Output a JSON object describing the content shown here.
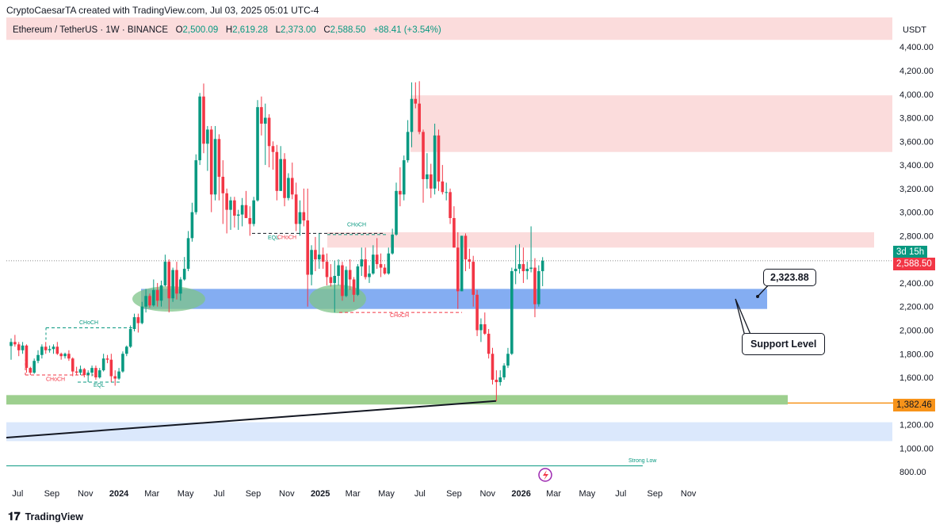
{
  "caption": "CryptoCaesarTA created with TradingView.com, Jul 03, 2025 05:01 UTC-4",
  "legend": {
    "symbol": "Ethereum / TetherUS · 1W · BINANCE",
    "o_label": "O",
    "o_value": "2,500.09",
    "h_label": "H",
    "h_value": "2,619.28",
    "l_label": "L",
    "l_value": "2,373.00",
    "c_label": "C",
    "c_value": "2,588.50",
    "change": "+88.41 (+3.54%)"
  },
  "brand": "TradingView",
  "tags": {
    "timer": "3d 15h",
    "last_price": "2,588.50",
    "level_price": "1,382.46"
  },
  "annotations": {
    "callout_price": "2,323.88",
    "callout_support": "Support Level",
    "choch_1": "CHoCH",
    "choch_2": "CHoCH",
    "choch_3": "CHoCH",
    "choch_4": "CHoCH",
    "choch_5": "CHoCH",
    "eql_1": "EQL",
    "eql_2": "EQL",
    "strong_low": "Strong Low"
  },
  "colors": {
    "up": "#089981",
    "down": "#f23645",
    "supply_zone": "#fbdcdc",
    "demand_zone": "#6e9ff0",
    "base_zone": "#8cc77a",
    "lower_zone": "#dbe8fc",
    "level_line": "#f7931a"
  },
  "chart_data": {
    "type": "candlestick",
    "interval": "1W",
    "y_axis_title": "USDT",
    "y_ticks": [
      800,
      1000,
      1200,
      1600,
      1800,
      2000,
      2200,
      2400,
      2800,
      3000,
      3200,
      3400,
      3600,
      3800,
      4000,
      4200,
      4400
    ],
    "y_tick_labels": [
      "800.00",
      "1,000.00",
      "1,200.00",
      "1,600.00",
      "1,800.00",
      "2,000.00",
      "2,200.00",
      "2,400.00",
      "2,800.00",
      "3,000.00",
      "3,200.00",
      "3,400.00",
      "3,600.00",
      "3,800.00",
      "4,000.00",
      "4,200.00",
      "4,400.00"
    ],
    "ylim": [
      700,
      4650
    ],
    "x_tick_labels": [
      "Jul",
      "Sep",
      "Nov",
      "2024",
      "Mar",
      "May",
      "Jul",
      "Sep",
      "Nov",
      "2025",
      "Mar",
      "May",
      "Jul",
      "Sep",
      "Nov",
      "2026",
      "Mar",
      "May",
      "Jul",
      "Sep",
      "Nov"
    ],
    "x_tick_dates": [
      "2023-07-01",
      "2023-09-01",
      "2023-11-01",
      "2024-01-01",
      "2024-03-01",
      "2024-05-01",
      "2024-07-01",
      "2024-09-01",
      "2024-11-01",
      "2025-01-01",
      "2025-03-01",
      "2025-05-01",
      "2025-07-01",
      "2025-09-01",
      "2025-11-01",
      "2026-01-01",
      "2026-03-01",
      "2026-05-01",
      "2026-07-01",
      "2026-09-01",
      "2026-11-01"
    ],
    "candles_ohlc": [
      [
        1866,
        1930,
        1750,
        1900
      ],
      [
        1900,
        1960,
        1860,
        1880
      ],
      [
        1880,
        1900,
        1780,
        1830
      ],
      [
        1830,
        1900,
        1800,
        1870
      ],
      [
        1870,
        1880,
        1640,
        1680
      ],
      [
        1680,
        1690,
        1620,
        1640
      ],
      [
        1640,
        1760,
        1630,
        1740
      ],
      [
        1740,
        1830,
        1720,
        1790
      ],
      [
        1790,
        1880,
        1760,
        1860
      ],
      [
        1860,
        1900,
        1800,
        1830
      ],
      [
        1830,
        1870,
        1810,
        1840
      ],
      [
        1840,
        1880,
        1800,
        1860
      ],
      [
        1860,
        1900,
        1790,
        1800
      ],
      [
        1800,
        1810,
        1750,
        1780
      ],
      [
        1780,
        1810,
        1760,
        1800
      ],
      [
        1800,
        1830,
        1740,
        1760
      ],
      [
        1760,
        1770,
        1610,
        1650
      ],
      [
        1650,
        1690,
        1620,
        1640
      ],
      [
        1640,
        1700,
        1620,
        1670
      ],
      [
        1670,
        1680,
        1600,
        1620
      ],
      [
        1620,
        1660,
        1560,
        1640
      ],
      [
        1640,
        1700,
        1610,
        1680
      ],
      [
        1680,
        1700,
        1580,
        1600
      ],
      [
        1600,
        1680,
        1590,
        1660
      ],
      [
        1660,
        1800,
        1650,
        1760
      ],
      [
        1760,
        1790,
        1720,
        1750
      ],
      [
        1750,
        1800,
        1560,
        1610
      ],
      [
        1610,
        1660,
        1530,
        1590
      ],
      [
        1590,
        1680,
        1580,
        1650
      ],
      [
        1650,
        1820,
        1640,
        1800
      ],
      [
        1800,
        1870,
        1780,
        1860
      ],
      [
        1860,
        2040,
        1850,
        2010
      ],
      [
        2010,
        2140,
        1990,
        2110
      ],
      [
        2110,
        2140,
        1980,
        2060
      ],
      [
        2060,
        2240,
        2050,
        2200
      ],
      [
        2200,
        2350,
        2150,
        2290
      ],
      [
        2290,
        2310,
        2190,
        2210
      ],
      [
        2210,
        2430,
        2200,
        2340
      ],
      [
        2340,
        2400,
        2200,
        2250
      ],
      [
        2250,
        2420,
        2200,
        2380
      ],
      [
        2380,
        2640,
        2370,
        2580
      ],
      [
        2580,
        2600,
        2150,
        2270
      ],
      [
        2270,
        2530,
        2240,
        2510
      ],
      [
        2510,
        2580,
        2260,
        2310
      ],
      [
        2310,
        2450,
        2250,
        2430
      ],
      [
        2430,
        2620,
        2420,
        2520
      ],
      [
        2520,
        2840,
        2500,
        2780
      ],
      [
        2780,
        3080,
        2750,
        3000
      ],
      [
        3000,
        3490,
        2980,
        3440
      ],
      [
        3440,
        4010,
        3400,
        3980
      ],
      [
        3980,
        4090,
        3500,
        3580
      ],
      [
        3580,
        3730,
        3350,
        3700
      ],
      [
        3700,
        3730,
        3000,
        3150
      ],
      [
        3150,
        3730,
        3100,
        3620
      ],
      [
        3620,
        3660,
        3100,
        3300
      ],
      [
        3300,
        3440,
        2900,
        3160
      ],
      [
        3160,
        3200,
        2820,
        3020
      ],
      [
        3020,
        3130,
        2850,
        3100
      ],
      [
        3100,
        3130,
        2870,
        2970
      ],
      [
        2970,
        3020,
        2850,
        2980
      ],
      [
        2980,
        3120,
        2880,
        3060
      ],
      [
        3060,
        3180,
        2950,
        2950
      ],
      [
        2950,
        3050,
        2800,
        2900
      ],
      [
        2900,
        3130,
        2880,
        3100
      ],
      [
        3100,
        3950,
        3090,
        3890
      ],
      [
        3890,
        3980,
        3650,
        3750
      ],
      [
        3750,
        3920,
        3400,
        3800
      ],
      [
        3800,
        3830,
        3380,
        3560
      ],
      [
        3560,
        3600,
        3360,
        3510
      ],
      [
        3510,
        3570,
        3100,
        3180
      ],
      [
        3180,
        3560,
        3180,
        3450
      ],
      [
        3450,
        3500,
        3050,
        3120
      ],
      [
        3120,
        3330,
        3100,
        3290
      ],
      [
        3290,
        3420,
        3110,
        3150
      ],
      [
        3150,
        3250,
        2840,
        2900
      ],
      [
        2900,
        3100,
        2800,
        3000
      ],
      [
        3000,
        3200,
        2880,
        2930
      ],
      [
        2930,
        3200,
        2200,
        2470
      ],
      [
        2470,
        2720,
        2380,
        2680
      ],
      [
        2680,
        2790,
        2500,
        2600
      ],
      [
        2600,
        2820,
        2520,
        2640
      ],
      [
        2640,
        2700,
        2520,
        2580
      ],
      [
        2580,
        2650,
        2380,
        2450
      ],
      [
        2450,
        2560,
        2370,
        2400
      ],
      [
        2400,
        2590,
        2150,
        2460
      ],
      [
        2460,
        2600,
        2380,
        2550
      ],
      [
        2550,
        2580,
        2250,
        2290
      ],
      [
        2290,
        2540,
        2280,
        2510
      ],
      [
        2510,
        2600,
        2340,
        2430
      ],
      [
        2430,
        2450,
        2240,
        2300
      ],
      [
        2300,
        2560,
        2290,
        2540
      ],
      [
        2540,
        2700,
        2460,
        2600
      ],
      [
        2600,
        2700,
        2430,
        2450
      ],
      [
        2450,
        2550,
        2400,
        2480
      ],
      [
        2480,
        2720,
        2470,
        2640
      ],
      [
        2640,
        2780,
        2520,
        2560
      ],
      [
        2560,
        2650,
        2450,
        2530
      ],
      [
        2530,
        2560,
        2470,
        2480
      ],
      [
        2480,
        2700,
        2470,
        2650
      ],
      [
        2650,
        2860,
        2640,
        2810
      ],
      [
        2810,
        3250,
        2800,
        3180
      ],
      [
        3180,
        3380,
        3050,
        3150
      ],
      [
        3150,
        3480,
        3100,
        3440
      ],
      [
        3440,
        3780,
        3420,
        3680
      ],
      [
        3680,
        4100,
        3550,
        3960
      ],
      [
        3960,
        4100,
        3880,
        3920
      ],
      [
        3920,
        4110,
        3660,
        3680
      ],
      [
        3680,
        3700,
        3080,
        3280
      ],
      [
        3280,
        3500,
        3200,
        3320
      ],
      [
        3320,
        3410,
        3120,
        3200
      ],
      [
        3200,
        3750,
        3150,
        3650
      ],
      [
        3650,
        3700,
        3180,
        3260
      ],
      [
        3260,
        3400,
        3150,
        3170
      ],
      [
        3170,
        3250,
        3100,
        3170
      ],
      [
        3170,
        3200,
        2900,
        2950
      ],
      [
        2950,
        3050,
        2700,
        2700
      ],
      [
        2700,
        2830,
        2180,
        2330
      ],
      [
        2330,
        2800,
        2330,
        2800
      ],
      [
        2800,
        2820,
        2500,
        2600
      ],
      [
        2600,
        2690,
        2520,
        2580
      ],
      [
        2580,
        2630,
        2200,
        2300
      ],
      [
        2300,
        2340,
        1950,
        2000
      ],
      [
        2000,
        2100,
        1900,
        2050
      ],
      [
        2050,
        2150,
        1960,
        1970
      ],
      [
        1970,
        2010,
        1760,
        1800
      ],
      [
        1800,
        1850,
        1540,
        1580
      ],
      [
        1580,
        1660,
        1400,
        1560
      ],
      [
        1560,
        1660,
        1530,
        1600
      ],
      [
        1600,
        1720,
        1580,
        1700
      ],
      [
        1700,
        1850,
        1680,
        1800
      ],
      [
        1800,
        2530,
        1790,
        2500
      ],
      [
        2500,
        2720,
        2390,
        2520
      ],
      [
        2520,
        2730,
        2480,
        2560
      ],
      [
        2560,
        2700,
        2400,
        2500
      ],
      [
        2500,
        2580,
        2430,
        2520
      ],
      [
        2520,
        2880,
        2490,
        2530
      ],
      [
        2530,
        2610,
        2110,
        2220
      ],
      [
        2220,
        2550,
        2200,
        2500
      ],
      [
        2500,
        2619,
        2373,
        2588
      ]
    ],
    "zones": [
      {
        "name": "upper-supply",
        "from": 4460,
        "to": 4650
      },
      {
        "name": "supply",
        "from": 3510,
        "to": 3990
      },
      {
        "name": "mid-supply",
        "from": 2700,
        "to": 2830
      },
      {
        "name": "demand",
        "from": 2180,
        "to": 2350
      },
      {
        "name": "base",
        "from": 1370,
        "to": 1450
      },
      {
        "name": "lower",
        "from": 1060,
        "to": 1220
      }
    ],
    "current_price": 2588.5,
    "level": 1382.46,
    "support_callout_price": 2323.88
  }
}
